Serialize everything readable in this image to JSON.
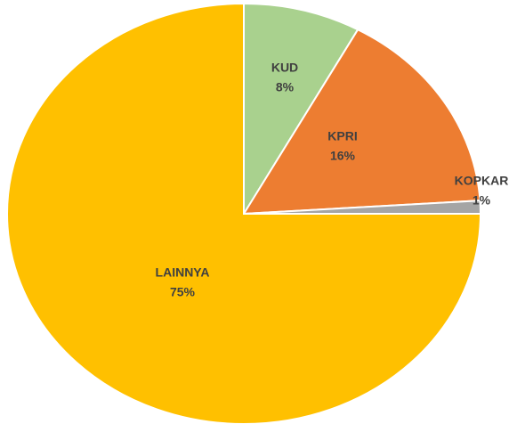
{
  "chart_data": {
    "type": "pie",
    "categories": [
      "KUD",
      "KPRI",
      "KOPKAR",
      "LAINNYA"
    ],
    "values": [
      8,
      16,
      1,
      75
    ],
    "value_labels": [
      "8%",
      "16%",
      "1%",
      "75%"
    ],
    "colors": [
      "#a9d18e",
      "#ed7d31",
      "#a5a5a5",
      "#ffc000"
    ]
  }
}
